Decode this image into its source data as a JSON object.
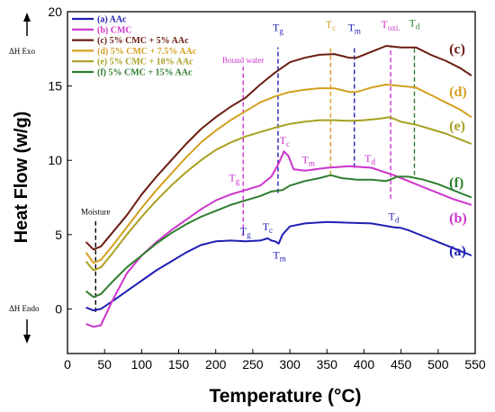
{
  "chart_data": {
    "type": "line",
    "xlabel": "Temperature (°C)",
    "ylabel": "Heat Flow (w/g)",
    "xlim": [
      0,
      550
    ],
    "ylim": [
      -3,
      20
    ],
    "xticks": [
      0,
      50,
      100,
      150,
      200,
      250,
      300,
      350,
      400,
      450,
      500,
      550
    ],
    "yticks": [
      0,
      5,
      10,
      15,
      20
    ],
    "exo_label": "ΔH Exo",
    "endo_label": "ΔH Endo",
    "legend_position": "top-left",
    "series": [
      {
        "name": "(a) AAc",
        "tag": "(a)",
        "color": "#1f1fb4",
        "points": [
          [
            25,
            0.1
          ],
          [
            35,
            -0.1
          ],
          [
            45,
            0.0
          ],
          [
            60,
            0.5
          ],
          [
            80,
            1.2
          ],
          [
            100,
            1.9
          ],
          [
            120,
            2.6
          ],
          [
            140,
            3.2
          ],
          [
            160,
            3.8
          ],
          [
            180,
            4.3
          ],
          [
            200,
            4.55
          ],
          [
            220,
            4.6
          ],
          [
            240,
            4.55
          ],
          [
            260,
            4.6
          ],
          [
            270,
            4.75
          ],
          [
            275,
            4.6
          ],
          [
            280,
            4.55
          ],
          [
            285,
            4.4
          ],
          [
            290,
            5.0
          ],
          [
            300,
            5.55
          ],
          [
            320,
            5.75
          ],
          [
            350,
            5.85
          ],
          [
            380,
            5.8
          ],
          [
            410,
            5.75
          ],
          [
            440,
            5.5
          ],
          [
            450,
            5.45
          ],
          [
            460,
            5.3
          ],
          [
            480,
            4.9
          ],
          [
            500,
            4.5
          ],
          [
            520,
            4.1
          ],
          [
            545,
            3.6
          ]
        ],
        "tag_at": [
          515,
          3.6
        ]
      },
      {
        "name": "(b) CMC",
        "tag": "(b)",
        "color": "#cc33cc",
        "points": [
          [
            25,
            -1.0
          ],
          [
            35,
            -1.2
          ],
          [
            45,
            -1.1
          ],
          [
            60,
            0.5
          ],
          [
            80,
            2.4
          ],
          [
            100,
            3.6
          ],
          [
            120,
            4.5
          ],
          [
            140,
            5.3
          ],
          [
            160,
            6.0
          ],
          [
            180,
            6.7
          ],
          [
            200,
            7.3
          ],
          [
            220,
            7.7
          ],
          [
            240,
            8.0
          ],
          [
            260,
            8.3
          ],
          [
            275,
            8.9
          ],
          [
            285,
            9.8
          ],
          [
            292,
            10.6
          ],
          [
            298,
            10.3
          ],
          [
            305,
            9.4
          ],
          [
            320,
            9.3
          ],
          [
            350,
            9.5
          ],
          [
            380,
            9.6
          ],
          [
            410,
            9.5
          ],
          [
            440,
            9.0
          ],
          [
            460,
            8.6
          ],
          [
            480,
            8.2
          ],
          [
            500,
            7.8
          ],
          [
            520,
            7.4
          ],
          [
            545,
            7.0
          ]
        ],
        "tag_at": [
          515,
          5.8
        ]
      },
      {
        "name": "(c) 5% CMC + 5% AAc",
        "tag": "(c)",
        "color": "#6b1c12",
        "points": [
          [
            25,
            4.5
          ],
          [
            35,
            4.0
          ],
          [
            45,
            4.2
          ],
          [
            60,
            5.1
          ],
          [
            80,
            6.3
          ],
          [
            100,
            7.7
          ],
          [
            120,
            8.9
          ],
          [
            140,
            10.0
          ],
          [
            160,
            11.1
          ],
          [
            180,
            12.1
          ],
          [
            200,
            12.9
          ],
          [
            220,
            13.6
          ],
          [
            240,
            14.2
          ],
          [
            260,
            15.1
          ],
          [
            280,
            15.9
          ],
          [
            300,
            16.6
          ],
          [
            320,
            16.9
          ],
          [
            340,
            17.1
          ],
          [
            360,
            17.15
          ],
          [
            380,
            16.9
          ],
          [
            390,
            16.9
          ],
          [
            410,
            17.3
          ],
          [
            430,
            17.7
          ],
          [
            450,
            17.6
          ],
          [
            470,
            17.6
          ],
          [
            490,
            17.1
          ],
          [
            510,
            16.7
          ],
          [
            530,
            16.2
          ],
          [
            545,
            15.7
          ]
        ],
        "tag_at": [
          515,
          17.2
        ]
      },
      {
        "name": "(d) 5% CMC + 7.5% AAc",
        "tag": "(d)",
        "color": "#d4a020",
        "points": [
          [
            25,
            3.8
          ],
          [
            35,
            3.1
          ],
          [
            45,
            3.3
          ],
          [
            60,
            4.2
          ],
          [
            80,
            5.5
          ],
          [
            100,
            6.8
          ],
          [
            120,
            8.0
          ],
          [
            140,
            9.1
          ],
          [
            160,
            10.2
          ],
          [
            180,
            11.2
          ],
          [
            200,
            12.0
          ],
          [
            220,
            12.7
          ],
          [
            240,
            13.3
          ],
          [
            260,
            13.9
          ],
          [
            280,
            14.3
          ],
          [
            300,
            14.6
          ],
          [
            320,
            14.75
          ],
          [
            340,
            14.85
          ],
          [
            360,
            14.85
          ],
          [
            380,
            14.6
          ],
          [
            390,
            14.6
          ],
          [
            410,
            14.9
          ],
          [
            430,
            15.1
          ],
          [
            450,
            15.0
          ],
          [
            470,
            14.9
          ],
          [
            490,
            14.4
          ],
          [
            510,
            13.9
          ],
          [
            530,
            13.4
          ],
          [
            545,
            12.9
          ]
        ],
        "tag_at": [
          515,
          14.3
        ]
      },
      {
        "name": "(e) 5% CMC + 10% AAc",
        "tag": "(e)",
        "color": "#a8a020",
        "points": [
          [
            25,
            3.2
          ],
          [
            35,
            2.6
          ],
          [
            45,
            2.8
          ],
          [
            60,
            3.7
          ],
          [
            80,
            5.0
          ],
          [
            100,
            6.2
          ],
          [
            120,
            7.3
          ],
          [
            140,
            8.3
          ],
          [
            160,
            9.2
          ],
          [
            180,
            10.0
          ],
          [
            200,
            10.7
          ],
          [
            220,
            11.2
          ],
          [
            240,
            11.6
          ],
          [
            260,
            11.9
          ],
          [
            280,
            12.2
          ],
          [
            300,
            12.45
          ],
          [
            320,
            12.6
          ],
          [
            340,
            12.7
          ],
          [
            360,
            12.7
          ],
          [
            380,
            12.65
          ],
          [
            400,
            12.7
          ],
          [
            420,
            12.8
          ],
          [
            435,
            12.9
          ],
          [
            450,
            12.6
          ],
          [
            470,
            12.4
          ],
          [
            490,
            12.1
          ],
          [
            510,
            11.8
          ],
          [
            530,
            11.4
          ],
          [
            545,
            11.1
          ]
        ],
        "tag_at": [
          515,
          12.0
        ]
      },
      {
        "name": "(f) 5% CMC + 15% AAc",
        "tag": "(f)",
        "color": "#2e7d2e",
        "points": [
          [
            25,
            1.2
          ],
          [
            35,
            0.8
          ],
          [
            45,
            1.0
          ],
          [
            60,
            1.8
          ],
          [
            80,
            2.8
          ],
          [
            100,
            3.6
          ],
          [
            120,
            4.4
          ],
          [
            140,
            5.1
          ],
          [
            160,
            5.7
          ],
          [
            180,
            6.2
          ],
          [
            200,
            6.6
          ],
          [
            220,
            7.0
          ],
          [
            240,
            7.3
          ],
          [
            260,
            7.6
          ],
          [
            275,
            7.9
          ],
          [
            290,
            8.0
          ],
          [
            300,
            8.3
          ],
          [
            320,
            8.6
          ],
          [
            340,
            8.8
          ],
          [
            355,
            9.0
          ],
          [
            370,
            8.8
          ],
          [
            390,
            8.7
          ],
          [
            410,
            8.7
          ],
          [
            430,
            8.6
          ],
          [
            445,
            8.9
          ],
          [
            460,
            8.9
          ],
          [
            480,
            8.7
          ],
          [
            500,
            8.4
          ],
          [
            520,
            8.0
          ],
          [
            545,
            7.5
          ]
        ],
        "tag_at": [
          515,
          8.2
        ]
      }
    ],
    "vlines": [
      {
        "x": 38,
        "color": "#000000",
        "label": "Moisture",
        "from": -0.2,
        "to": 6.1
      },
      {
        "x": 237,
        "color": "#cc33cc",
        "label": "Bound water",
        "from": 4.9,
        "to": 16.3
      },
      {
        "x": 284,
        "color": "#1f1fb4",
        "from": 7.8,
        "to": 17.6
      },
      {
        "x": 355,
        "color": "#d4a020",
        "from": 9.0,
        "to": 17.6
      },
      {
        "x": 387,
        "color": "#1f1fb4",
        "from": 9.5,
        "to": 17.6
      },
      {
        "x": 436,
        "color": "#cc33cc",
        "from": 7.4,
        "to": 17.6
      },
      {
        "x": 468,
        "color": "#2e7d2e",
        "from": 9.0,
        "to": 17.6
      }
    ],
    "annotations": [
      {
        "main": "T",
        "sub": "g",
        "x": 284,
        "y": 18.7,
        "color": "#1f1fb4"
      },
      {
        "main": "T",
        "sub": "c",
        "x": 355,
        "y": 18.9,
        "color": "#d4a020"
      },
      {
        "main": "T",
        "sub": "m",
        "x": 387,
        "y": 18.7,
        "color": "#1f1fb4"
      },
      {
        "main": "T",
        "sub": "oxi.",
        "x": 436,
        "y": 18.9,
        "color": "#cc33cc"
      },
      {
        "main": "T",
        "sub": "d",
        "x": 468,
        "y": 19.0,
        "color": "#2e7d2e"
      },
      {
        "main": "T",
        "sub": "g",
        "x": 225,
        "y": 8.6,
        "color": "#cc33cc"
      },
      {
        "main": "T",
        "sub": "c",
        "x": 293,
        "y": 11.1,
        "color": "#cc33cc"
      },
      {
        "main": "T",
        "sub": "m",
        "x": 325,
        "y": 9.8,
        "color": "#cc33cc"
      },
      {
        "main": "T",
        "sub": "d",
        "x": 408,
        "y": 9.9,
        "color": "#cc33cc"
      },
      {
        "main": "T",
        "sub": "g",
        "x": 240,
        "y": 5.0,
        "color": "#1f1fb4"
      },
      {
        "main": "T",
        "sub": "c",
        "x": 270,
        "y": 5.3,
        "color": "#1f1fb4"
      },
      {
        "main": "T",
        "sub": "m",
        "x": 286,
        "y": 3.4,
        "color": "#1f1fb4"
      },
      {
        "main": "T",
        "sub": "d",
        "x": 440,
        "y": 6.0,
        "color": "#1f1fb4"
      }
    ]
  }
}
